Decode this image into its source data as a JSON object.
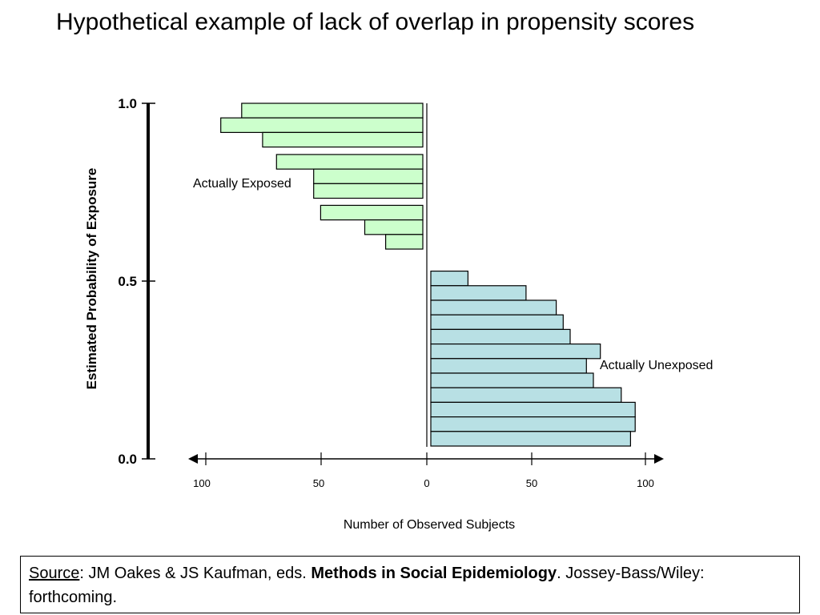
{
  "slide": {
    "title": "Hypothetical example of lack of overlap in propensity scores"
  },
  "source": {
    "label": "Source",
    "colon": ": ",
    "authors": "JM Oakes & JS Kaufman, eds. ",
    "book": "Methods in Social Epidemiology",
    "rest": ". Jossey-Bass/Wiley: forthcoming."
  },
  "colors": {
    "exposed_fill": "#ccffcc",
    "unexposed_fill": "#b8e0e4",
    "outline": "#000000"
  },
  "chart_data": {
    "type": "bar",
    "orientation": "horizontal-back-to-back",
    "ylabel": "Estimated Probability of Exposure",
    "xlabel": "Number of Observed Subjects",
    "ylim": [
      0.0,
      1.0
    ],
    "xlim": [
      -100,
      100
    ],
    "y_ticks": [
      "0.0",
      "0.5",
      "1.0"
    ],
    "x_ticks": [
      "100",
      "50",
      "0",
      "50",
      "100"
    ],
    "series": [
      {
        "name": "Actually Exposed",
        "side": "left",
        "bins": [
          {
            "y0": 0.959,
            "y1": 1.0,
            "count": 78
          },
          {
            "y0": 0.918,
            "y1": 0.959,
            "count": 87
          },
          {
            "y0": 0.877,
            "y1": 0.918,
            "count": 69
          },
          {
            "y0": 0.815,
            "y1": 0.856,
            "count": 63
          },
          {
            "y0": 0.774,
            "y1": 0.815,
            "count": 47
          },
          {
            "y0": 0.733,
            "y1": 0.774,
            "count": 47
          },
          {
            "y0": 0.672,
            "y1": 0.713,
            "count": 44
          },
          {
            "y0": 0.631,
            "y1": 0.672,
            "count": 25
          },
          {
            "y0": 0.59,
            "y1": 0.631,
            "count": 16
          }
        ]
      },
      {
        "name": "Actually Unexposed",
        "side": "right",
        "bins": [
          {
            "y0": 0.487,
            "y1": 0.528,
            "count": 16
          },
          {
            "y0": 0.446,
            "y1": 0.487,
            "count": 41
          },
          {
            "y0": 0.405,
            "y1": 0.446,
            "count": 54
          },
          {
            "y0": 0.364,
            "y1": 0.405,
            "count": 57
          },
          {
            "y0": 0.323,
            "y1": 0.364,
            "count": 60
          },
          {
            "y0": 0.282,
            "y1": 0.323,
            "count": 73
          },
          {
            "y0": 0.241,
            "y1": 0.282,
            "count": 67
          },
          {
            "y0": 0.2,
            "y1": 0.241,
            "count": 70
          },
          {
            "y0": 0.159,
            "y1": 0.2,
            "count": 82
          },
          {
            "y0": 0.118,
            "y1": 0.159,
            "count": 88
          },
          {
            "y0": 0.077,
            "y1": 0.118,
            "count": 88
          },
          {
            "y0": 0.036,
            "y1": 0.077,
            "count": 86
          }
        ]
      }
    ]
  }
}
